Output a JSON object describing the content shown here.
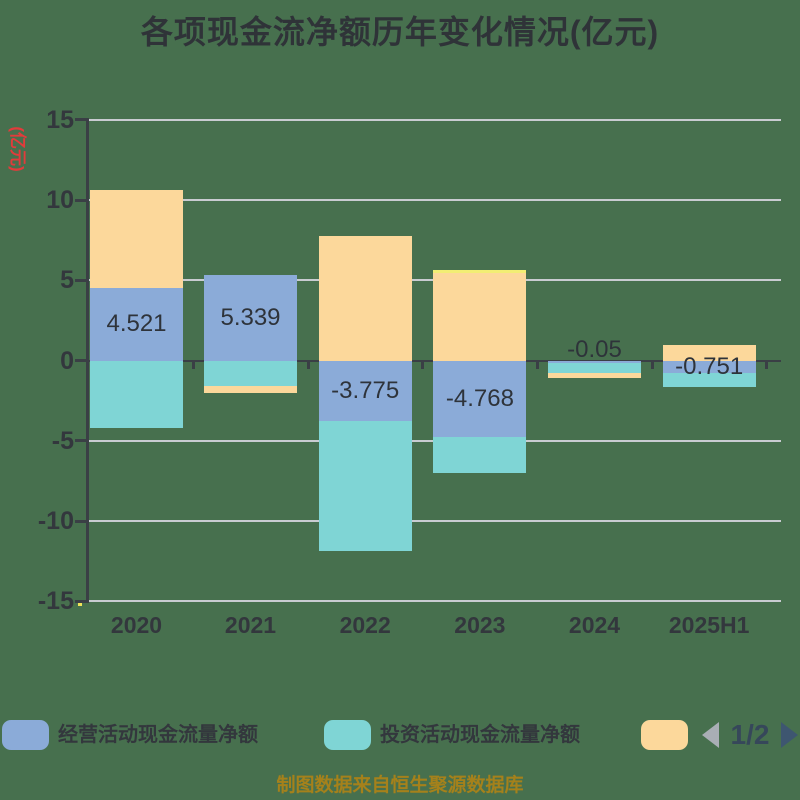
{
  "title": "各项现金流净额历年变化情况(亿元)",
  "y_axis": {
    "unit_label": "(亿元)",
    "tick_labels": [
      "15",
      "10",
      "5",
      "0",
      "-5",
      "-10",
      "-15"
    ],
    "tick_values": [
      15,
      10,
      5,
      0,
      -5,
      -10,
      -15
    ]
  },
  "chart_data": {
    "type": "bar",
    "stacked": true,
    "title": "各项现金流净额历年变化情况(亿元)",
    "ylabel": "(亿元)",
    "ylim": [
      -15,
      15
    ],
    "grid": true,
    "legend_position": "bottom",
    "categories": [
      "2020",
      "2021",
      "2022",
      "2023",
      "2024",
      "2025H1"
    ],
    "series": [
      {
        "name": "经营活动现金流量净额",
        "color": "#8BABD8",
        "values": [
          4.521,
          5.339,
          -3.775,
          -4.768,
          -0.05,
          -0.751
        ]
      },
      {
        "name": "投资活动现金流量净额",
        "color": "#7FD5D5",
        "values": [
          -4.2,
          -1.6,
          -8.1,
          -2.2,
          -0.6,
          -0.9
        ]
      },
      {
        "name": "",
        "color": "#FCD89B",
        "values": [
          6.1,
          -0.4,
          7.8,
          5.45,
          -0.3,
          0.98
        ]
      },
      {
        "name": "",
        "color": "#F2EE74",
        "values": [
          0,
          0,
          0,
          0.22,
          0,
          0
        ]
      }
    ],
    "value_labels": [
      "4.521",
      "5.339",
      "-3.775",
      "-4.768",
      "-0.05",
      "-0.751"
    ]
  },
  "legend": {
    "items": [
      {
        "label": "经营活动现金流量净额",
        "color": "#8BABD8"
      },
      {
        "label": "投资活动现金流量净额",
        "color": "#7FD5D5"
      },
      {
        "label": "",
        "color": "#FCD89B"
      }
    ],
    "pagination": {
      "text": "1/2"
    }
  },
  "caption": "制图数据来自恒生聚源数据库",
  "colors": {
    "background": "#47704E",
    "grid": "#C9CCD1",
    "axis": "#3A3F45",
    "text": "#33373D",
    "ylabel_unit": "#E23B3B",
    "caption": "#A5811B"
  }
}
